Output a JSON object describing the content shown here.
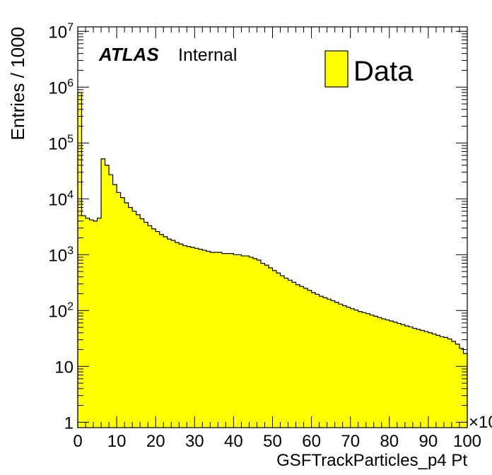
{
  "chart_data": {
    "type": "bar",
    "style": "filled-histogram",
    "xlabel": "GSFTrackParticles_p4 Pt",
    "ylabel": "Entries / 1000",
    "x_exponent_label": "×10",
    "xlim": [
      0,
      100
    ],
    "ylim": [
      0.8,
      12000000
    ],
    "y_scale": "log",
    "bin_width": 1,
    "x_ticks": [
      "0",
      "10",
      "20",
      "30",
      "40",
      "50",
      "60",
      "70",
      "80",
      "90",
      "100"
    ],
    "y_ticks": [
      {
        "value": 1,
        "base": "1",
        "exp": ""
      },
      {
        "value": 10,
        "base": "10",
        "exp": ""
      },
      {
        "value": 100,
        "base": "10",
        "exp": "2"
      },
      {
        "value": 1000,
        "base": "10",
        "exp": "3"
      },
      {
        "value": 10000,
        "base": "10",
        "exp": "4"
      },
      {
        "value": 100000,
        "base": "10",
        "exp": "5"
      },
      {
        "value": 1000000,
        "base": "10",
        "exp": "6"
      },
      {
        "value": 10000000,
        "base": "10",
        "exp": "7"
      }
    ],
    "fill_color": "#ffff00",
    "line_color": "#000000",
    "grid": false,
    "legend_position": "top-right",
    "series": [
      {
        "name": "Data",
        "values": [
          800000,
          5000,
          4500,
          4200,
          4000,
          4500,
          52000,
          40000,
          27000,
          18000,
          13000,
          10500,
          8500,
          7000,
          6000,
          5200,
          4400,
          3800,
          3300,
          2900,
          2600,
          2300,
          2100,
          1900,
          1800,
          1650,
          1550,
          1450,
          1400,
          1350,
          1300,
          1250,
          1200,
          1150,
          1100,
          1100,
          1100,
          1050,
          1050,
          1050,
          1000,
          1000,
          950,
          950,
          900,
          850,
          800,
          700,
          650,
          580,
          520,
          470,
          420,
          380,
          350,
          320,
          290,
          270,
          250,
          230,
          210,
          195,
          180,
          170,
          160,
          150,
          140,
          130,
          122,
          115,
          108,
          102,
          96,
          92,
          88,
          83,
          79,
          75,
          71,
          68,
          65,
          62,
          59,
          56,
          53,
          51,
          48,
          46,
          44,
          42,
          40,
          38,
          36,
          34,
          33,
          31,
          28,
          25,
          21,
          17
        ]
      }
    ]
  },
  "atlas_label": "ATLAS",
  "internal_label": "Internal"
}
